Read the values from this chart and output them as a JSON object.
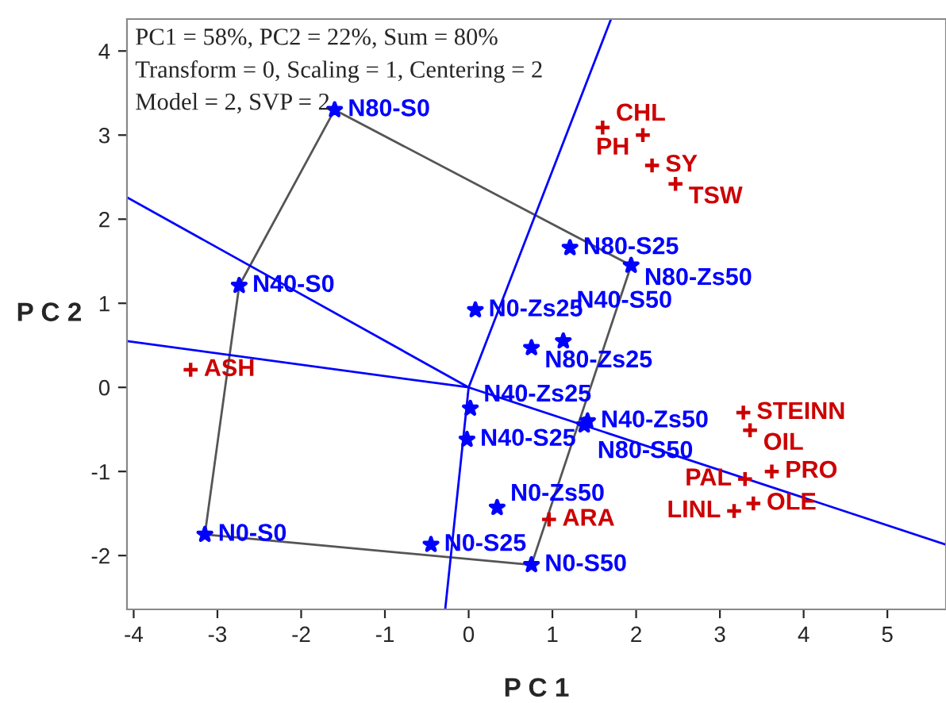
{
  "chart_data": {
    "type": "scatter",
    "xlabel": "P C 1",
    "ylabel": "P C 2",
    "xlim": [
      -4.08,
      5.7
    ],
    "ylim": [
      -2.64,
      4.38
    ],
    "xticks": [
      -4,
      -3,
      -2,
      -1,
      0,
      1,
      2,
      3,
      4,
      5
    ],
    "yticks": [
      -2,
      -1,
      0,
      1,
      2,
      3,
      4
    ],
    "grid": false,
    "legend": false,
    "series": [
      {
        "type": "line",
        "color": "#555555",
        "marker": "none",
        "x": [
          -1.6,
          1.94
        ],
        "values": [
          3.3,
          1.45
        ]
      },
      {
        "type": "line",
        "color": "#555555",
        "marker": "none",
        "x": [
          0.75,
          1.94
        ],
        "values": [
          -2.11,
          1.45
        ]
      },
      {
        "type": "line",
        "color": "#555555",
        "marker": "none",
        "x": [
          -3.15,
          0.75
        ],
        "values": [
          -1.75,
          -2.11
        ]
      },
      {
        "type": "line",
        "color": "#555555",
        "marker": "none",
        "x": [
          -3.15,
          -2.74
        ],
        "values": [
          -1.75,
          1.21
        ]
      },
      {
        "type": "line",
        "color": "#555555",
        "marker": "none",
        "x": [
          -2.74,
          -1.6
        ],
        "values": [
          1.21,
          3.3
        ]
      },
      {
        "type": "line",
        "color": "#0000ff",
        "marker": "none",
        "x": [
          -0.28,
          0,
          1.7
        ],
        "values": [
          -2.64,
          0,
          4.38
        ]
      },
      {
        "type": "line",
        "color": "#0000ff",
        "marker": "none",
        "x": [
          -4.08,
          0,
          5.7
        ],
        "values": [
          2.26,
          0,
          -1.87
        ]
      },
      {
        "type": "line",
        "color": "#0000ff",
        "marker": "none",
        "x": [
          0,
          -4.08
        ],
        "values": [
          0,
          0.55
        ]
      },
      {
        "color": "#0000ff",
        "marker": "star",
        "x": [
          -1.6,
          -2.74,
          -3.15,
          -0.45,
          0.75,
          0.34,
          -0.02,
          0.02,
          1.21,
          1.94,
          0.08,
          0.75,
          1.13,
          1.42,
          1.38
        ],
        "values": [
          3.3,
          1.21,
          -1.75,
          -1.87,
          -2.11,
          -1.43,
          -0.62,
          -0.25,
          1.66,
          1.45,
          0.92,
          0.47,
          0.55,
          -0.4,
          -0.45
        ]
      },
      {
        "color": "#cc0000",
        "marker": "cross",
        "x": [
          1.6,
          2.08,
          2.19,
          2.47,
          -3.32,
          3.28,
          3.36,
          3.62,
          3.3,
          3.4,
          3.17,
          0.96
        ],
        "values": [
          3.09,
          3.0,
          2.64,
          2.42,
          0.21,
          -0.3,
          -0.51,
          -1.0,
          -1.09,
          -1.38,
          -1.47,
          -1.57
        ]
      }
    ],
    "annotations": [
      "PC1 = 58%, PC2 = 22%, Sum = 80%",
      "Transform = 0, Scaling = 1, Centering = 2",
      "Model = 2, SVP = 2",
      {
        "text": "N80-S0",
        "x": -1.6,
        "y": 3.3
      },
      {
        "text": "N40-S0",
        "x": -2.74,
        "y": 1.21
      },
      {
        "text": "N0-S0",
        "x": -3.15,
        "y": -1.75
      },
      {
        "text": "N0-S25",
        "x": -0.45,
        "y": -1.87
      },
      {
        "text": "N0-S50",
        "x": 0.75,
        "y": -2.11
      },
      {
        "text": "N0-Zs50",
        "x": 0.34,
        "y": -1.43
      },
      {
        "text": "N40-S25",
        "x": -0.02,
        "y": -0.62
      },
      {
        "text": "N40-Zs25",
        "x": 0.02,
        "y": -0.25
      },
      {
        "text": "N80-S25",
        "x": 1.21,
        "y": 1.66
      },
      {
        "text": "N80-Zs50",
        "x": 1.94,
        "y": 1.45
      },
      {
        "text": "N0-Zs25",
        "x": 0.08,
        "y": 0.92
      },
      {
        "text": "N80-Zs25",
        "x": 0.75,
        "y": 0.47
      },
      {
        "text": "N40-S50",
        "x": 1.13,
        "y": 0.55
      },
      {
        "text": "N40-Zs50",
        "x": 1.42,
        "y": -0.4
      },
      {
        "text": "N80-S50",
        "x": 1.38,
        "y": -0.45
      },
      {
        "text": "CHL",
        "x": 1.6,
        "y": 3.09
      },
      {
        "text": "PH",
        "x": 2.08,
        "y": 3.0
      },
      {
        "text": "SY",
        "x": 2.19,
        "y": 2.64
      },
      {
        "text": "TSW",
        "x": 2.47,
        "y": 2.42
      },
      {
        "text": "ASH",
        "x": -3.32,
        "y": 0.21
      },
      {
        "text": "STEINN",
        "x": 3.28,
        "y": -0.3
      },
      {
        "text": "OIL",
        "x": 3.36,
        "y": -0.51
      },
      {
        "text": "PRO",
        "x": 3.62,
        "y": -1.0
      },
      {
        "text": "PAL",
        "x": 3.3,
        "y": -1.09
      },
      {
        "text": "OLE",
        "x": 3.4,
        "y": -1.38
      },
      {
        "text": "LINL",
        "x": 3.17,
        "y": -1.47
      },
      {
        "text": "ARA",
        "x": 0.96,
        "y": -1.57
      }
    ]
  }
}
